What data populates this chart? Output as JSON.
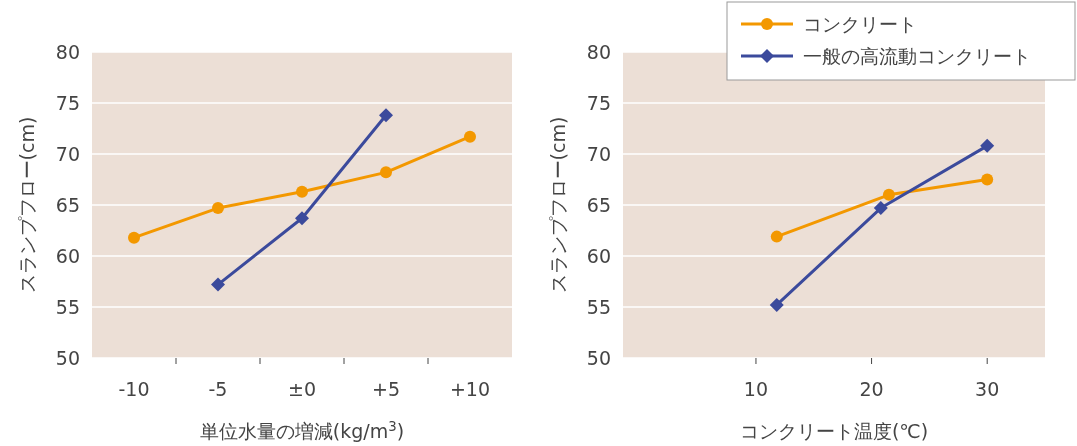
{
  "chart_data": [
    {
      "type": "line",
      "categories": [
        "-10",
        "-5",
        "±0",
        "+5",
        "+10"
      ],
      "xlabel": "単位水量の増減(kg/m$^{3}$)",
      "ylabel": "スランプフロー(cm)",
      "ylim": [
        50,
        80
      ],
      "yticks": [
        50,
        55,
        60,
        65,
        70,
        75,
        80
      ],
      "grid": "y",
      "legend": false,
      "series": [
        {
          "color": "#f39800",
          "marker": "circle",
          "values": [
            61.8,
            64.7,
            66.3,
            68.2,
            71.7
          ]
        },
        {
          "color": "#3b4a9c",
          "marker": "diamond",
          "values": [
            null,
            57.2,
            63.7,
            73.8,
            null
          ]
        }
      ]
    },
    {
      "type": "line",
      "xlabel": "コンクリート温度(℃)",
      "ylabel": "スランプフロー(cm)",
      "xlim": [
        -1.5,
        35
      ],
      "xticks": [
        10,
        20,
        30
      ],
      "ylim": [
        50,
        80
      ],
      "yticks": [
        50,
        55,
        60,
        65,
        70,
        75,
        80
      ],
      "grid": "y",
      "legend": "top right",
      "series": [
        {
          "name": "コンクリート",
          "color": "#f39800",
          "marker": "circle",
          "x": [
            11.8,
            21.5,
            30
          ],
          "values": [
            61.9,
            66.0,
            67.5
          ]
        },
        {
          "name": "一般の高流動コンクリート",
          "color": "#3b4a9c",
          "marker": "diamond",
          "x": [
            11.8,
            20.8,
            30
          ],
          "values": [
            55.2,
            64.7,
            70.8
          ]
        }
      ]
    }
  ]
}
